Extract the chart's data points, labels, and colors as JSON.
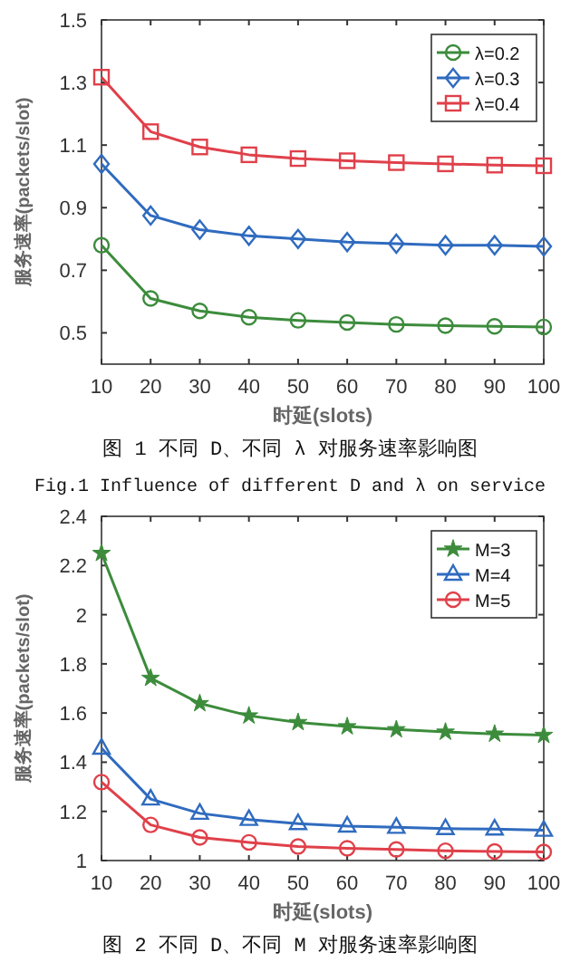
{
  "chart_data": [
    {
      "type": "line",
      "title": "图 1 不同 D、不同 λ 对服务速率影响图",
      "annotations": [
        "Fig.1 Influence of different D and λ on service"
      ],
      "xlabel": "时延(slots)",
      "ylabel": "服务速率(packets/slot)",
      "x": [
        10,
        20,
        30,
        40,
        50,
        60,
        70,
        80,
        90,
        100
      ],
      "xlim": [
        10,
        100
      ],
      "xticks": [
        10,
        20,
        30,
        40,
        50,
        60,
        70,
        80,
        90,
        100
      ],
      "ylim": [
        0.4,
        1.5
      ],
      "yticks": [
        0.5,
        0.7,
        0.9,
        1.1,
        1.3,
        1.5
      ],
      "legend": "top right",
      "series": [
        {
          "name": "λ=0.2",
          "color": "#3c8c3c",
          "marker": "circle",
          "values": [
            0.78,
            0.61,
            0.57,
            0.55,
            0.54,
            0.533,
            0.527,
            0.523,
            0.521,
            0.519
          ]
        },
        {
          "name": "λ=0.3",
          "color": "#2f6bbf",
          "marker": "diamond",
          "values": [
            1.04,
            0.875,
            0.83,
            0.81,
            0.8,
            0.79,
            0.785,
            0.78,
            0.78,
            0.776
          ]
        },
        {
          "name": "λ=0.4",
          "color": "#e0404a",
          "marker": "square",
          "values": [
            1.317,
            1.143,
            1.094,
            1.069,
            1.057,
            1.05,
            1.044,
            1.04,
            1.036,
            1.034
          ]
        }
      ]
    },
    {
      "type": "line",
      "title": "图 2 不同 D、不同 M 对服务速率影响图",
      "xlabel": "时延(slots)",
      "ylabel": "服务速率(packets/slot)",
      "x": [
        10,
        20,
        30,
        40,
        50,
        60,
        70,
        80,
        90,
        100
      ],
      "xlim": [
        10,
        100
      ],
      "xticks": [
        10,
        20,
        30,
        40,
        50,
        60,
        70,
        80,
        90,
        100
      ],
      "ylim": [
        1,
        2.4
      ],
      "yticks": [
        1,
        1.2,
        1.4,
        1.6,
        1.8,
        2,
        2.2,
        2.4
      ],
      "legend": "top right",
      "series": [
        {
          "name": "M=3",
          "color": "#3c8c3c",
          "marker": "star",
          "values": [
            2.25,
            1.742,
            1.639,
            1.589,
            1.562,
            1.545,
            1.533,
            1.523,
            1.515,
            1.51
          ]
        },
        {
          "name": "M=4",
          "color": "#2f6bbf",
          "marker": "triangle",
          "values": [
            1.457,
            1.25,
            1.192,
            1.167,
            1.15,
            1.14,
            1.135,
            1.13,
            1.128,
            1.123
          ]
        },
        {
          "name": "M=5",
          "color": "#e0404a",
          "marker": "circle",
          "values": [
            1.319,
            1.145,
            1.094,
            1.074,
            1.057,
            1.05,
            1.045,
            1.04,
            1.037,
            1.035
          ]
        }
      ]
    }
  ]
}
